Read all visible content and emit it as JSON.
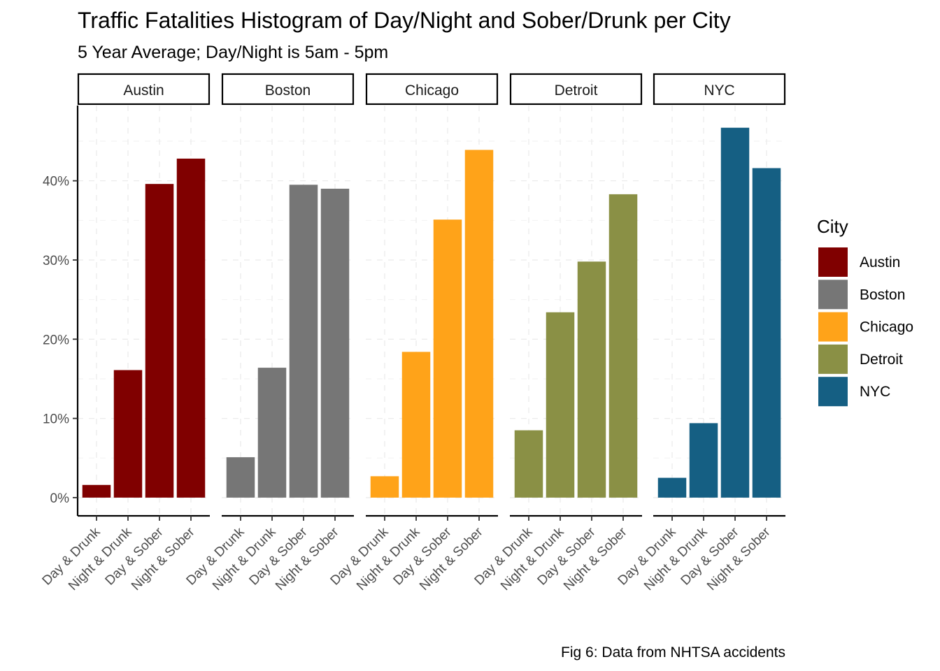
{
  "chart_data": {
    "type": "bar",
    "title": "Traffic Fatalities Histogram of Day/Night and Sober/Drunk per City",
    "subtitle": "5 Year Average; Day/Night is 5am - 5pm",
    "caption": "Fig 6: Data from NHTSA accidents",
    "xlabel": "",
    "ylabel": "",
    "categories": [
      "Day & Drunk",
      "Night & Drunk",
      "Day & Sober",
      "Night & Sober"
    ],
    "yticks": [
      0,
      10,
      20,
      30,
      40
    ],
    "ytick_labels": [
      "0%",
      "10%",
      "20%",
      "30%",
      "40%"
    ],
    "ylim": [
      -2.3,
      49.5
    ],
    "grid": true,
    "legend": {
      "title": "City",
      "position": "right"
    },
    "panels": [
      {
        "name": "Austin",
        "color": "#800000",
        "values": [
          1.6,
          16.1,
          39.6,
          42.8
        ]
      },
      {
        "name": "Boston",
        "color": "#767676",
        "values": [
          5.1,
          16.4,
          39.5,
          39.0
        ]
      },
      {
        "name": "Chicago",
        "color": "#FFA319",
        "values": [
          2.7,
          18.4,
          35.1,
          43.9
        ]
      },
      {
        "name": "Detroit",
        "color": "#8A9045",
        "values": [
          8.5,
          23.4,
          29.8,
          38.3
        ]
      },
      {
        "name": "NYC",
        "color": "#155F83",
        "values": [
          2.5,
          9.4,
          46.7,
          41.6
        ]
      }
    ]
  }
}
